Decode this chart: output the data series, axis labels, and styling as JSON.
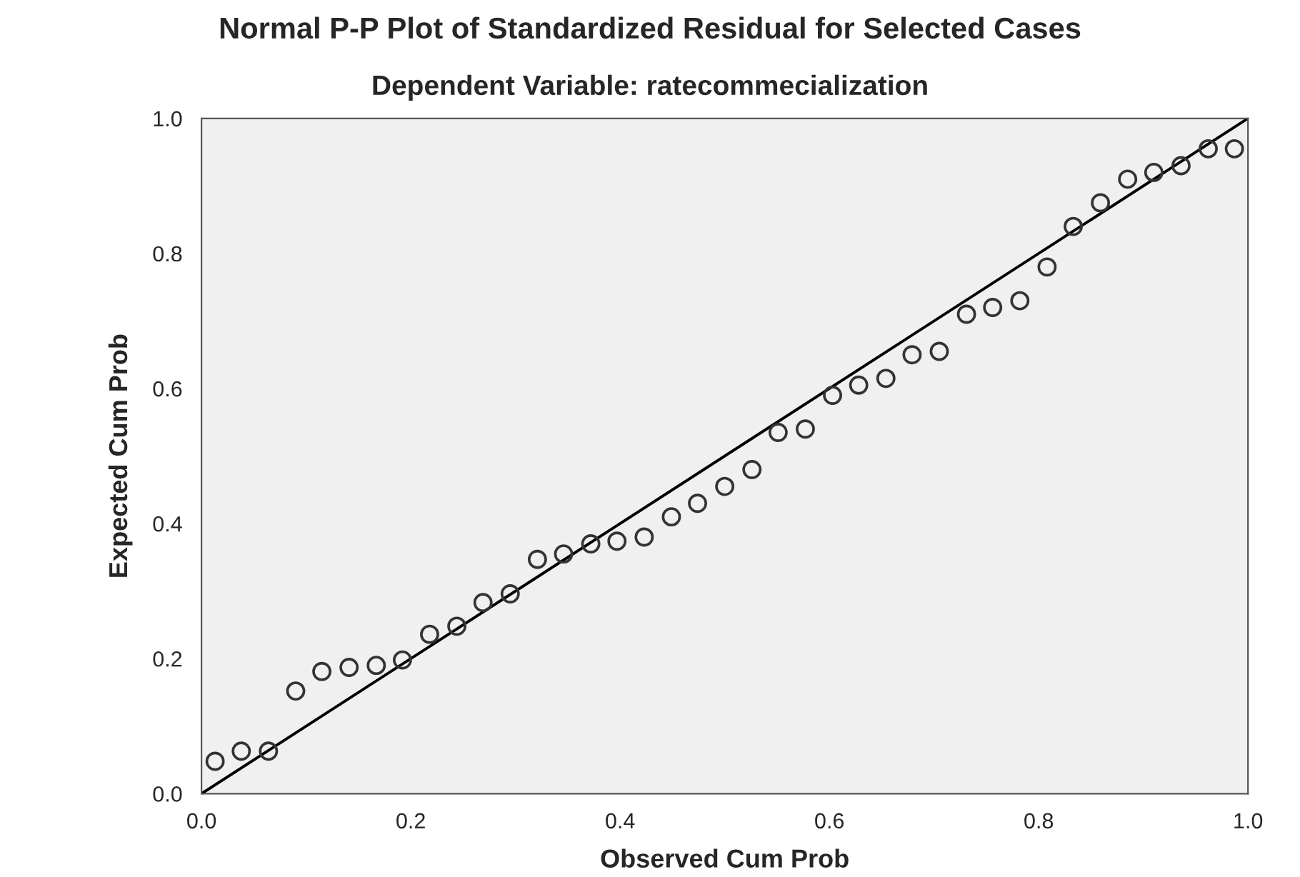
{
  "chart_data": {
    "type": "scatter",
    "title": "Normal P-P Plot of Standardized Residual for Selected Cases",
    "subtitle": "Dependent Variable: ratecommecialization",
    "xlabel": "Observed Cum Prob",
    "ylabel": "Expected Cum Prob",
    "xlim": [
      0,
      1
    ],
    "ylim": [
      0,
      1
    ],
    "xticks": [
      {
        "value": 0,
        "label": "0.0"
      },
      0.2,
      0.4,
      0.6,
      0.8,
      {
        "value": 1,
        "label": "1.0"
      }
    ],
    "yticks": [
      {
        "value": 0,
        "label": "0.0"
      },
      0.2,
      0.4,
      0.6,
      0.8,
      {
        "value": 1,
        "label": "1.0"
      }
    ],
    "grid": false,
    "legend": false,
    "series": [
      {
        "marker": "circle",
        "color": "#333333",
        "x": [
          0.013,
          0.038,
          0.064,
          0.09,
          0.115,
          0.141,
          0.167,
          0.192,
          0.218,
          0.244,
          0.269,
          0.295,
          0.321,
          0.346,
          0.372,
          0.397,
          0.423,
          0.449,
          0.474,
          0.5,
          0.526,
          0.551,
          0.577,
          0.603,
          0.628,
          0.654,
          0.679,
          0.705,
          0.731,
          0.756,
          0.782,
          0.808,
          0.833,
          0.859,
          0.885,
          0.91,
          0.936,
          0.962,
          0.987
        ],
        "values": [
          0.048,
          0.063,
          0.063,
          0.152,
          0.181,
          0.187,
          0.19,
          0.198,
          0.236,
          0.248,
          0.283,
          0.296,
          0.347,
          0.355,
          0.37,
          0.374,
          0.38,
          0.41,
          0.43,
          0.455,
          0.48,
          0.535,
          0.54,
          0.59,
          0.605,
          0.615,
          0.65,
          0.655,
          0.71,
          0.72,
          0.73,
          0.78,
          0.84,
          0.875,
          0.91,
          0.92,
          0.93,
          0.955,
          0.955
        ]
      },
      {
        "type": "line",
        "marker": "none",
        "line_style": "solid",
        "color": "#000000",
        "x": [
          0,
          1
        ],
        "values": [
          0,
          1
        ]
      }
    ]
  }
}
